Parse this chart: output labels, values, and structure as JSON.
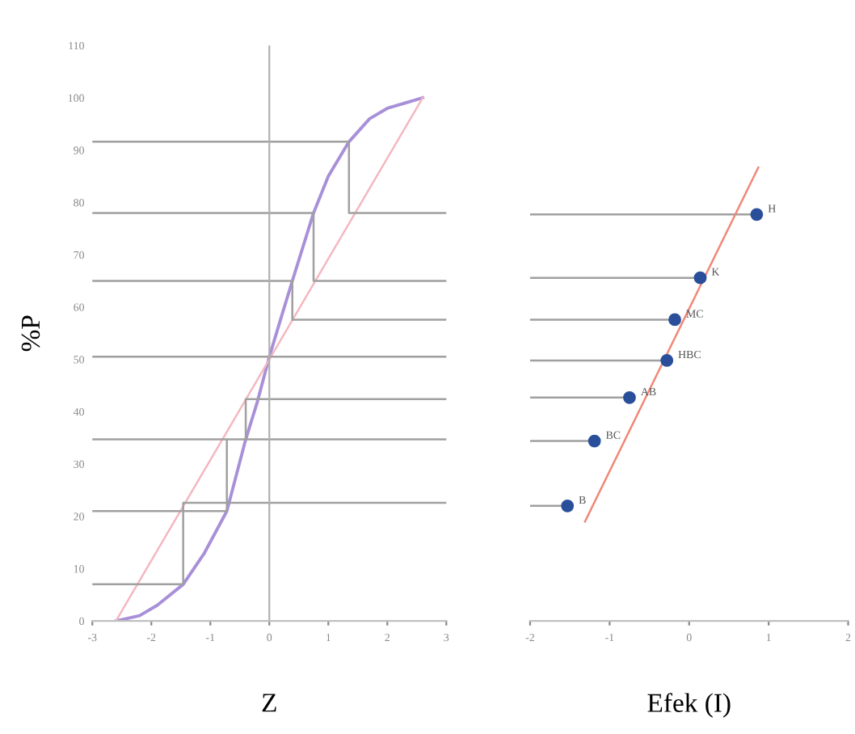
{
  "chart_data": [
    {
      "type": "line",
      "xlabel": "Z",
      "ylabel": "%P",
      "xlim": [
        -3,
        3
      ],
      "xticks": [
        -3,
        -2,
        -1,
        0,
        1,
        2,
        3
      ],
      "ylim": [
        0,
        110
      ],
      "yticks": [
        0,
        10,
        20,
        30,
        40,
        50,
        60,
        70,
        80,
        90,
        100,
        110
      ],
      "grid": false,
      "ref_lines": [
        {
          "axis": "x",
          "value": 0,
          "color": "#b0b0b0"
        }
      ],
      "series": [
        {
          "color": "#a890d8",
          "x": [
            -2.6,
            -2.2,
            -1.9,
            -1.46,
            -1.1,
            -0.72,
            -0.4,
            -0.2,
            0,
            0.2,
            0.39,
            0.75,
            1.0,
            1.35,
            1.7,
            2.0,
            2.6
          ],
          "values": [
            0,
            1,
            3,
            7,
            13,
            21,
            34.7,
            42,
            50.5,
            58,
            65,
            78,
            85,
            91.6,
            96,
            98,
            100
          ]
        },
        {
          "color": "#f4b8c0",
          "x": [
            -2.6,
            2.6
          ],
          "values": [
            0,
            100
          ]
        },
        {
          "color": "#a0a0a0",
          "x": [
            -3,
            1.35,
            1.35,
            1.35,
            3,
            null,
            -3,
            0.75,
            0.75,
            0.75,
            3,
            null,
            -3,
            0.39,
            0.39,
            0.39,
            3,
            null,
            -3,
            3,
            null,
            -3,
            -0.4,
            -0.4,
            -0.4,
            3,
            null,
            -3,
            -0.72,
            -0.72,
            -0.72,
            3,
            null,
            -3,
            -1.46,
            -1.46,
            -1.46,
            3
          ],
          "values": [
            91.6,
            91.6,
            78,
            78,
            78,
            null,
            78,
            78,
            65,
            65,
            65,
            null,
            65,
            65,
            57.6,
            57.6,
            57.6,
            null,
            50.5,
            50.5,
            null,
            34.7,
            34.7,
            42.4,
            42.4,
            42.4,
            null,
            21,
            21,
            34.7,
            34.7,
            34.7,
            null,
            7,
            7,
            22.6,
            22.6,
            22.6
          ]
        }
      ]
    },
    {
      "type": "scatter",
      "xlabel": "Efek (I)",
      "xlim": [
        -2,
        2
      ],
      "xticks": [
        -2,
        -1,
        0,
        1,
        2
      ],
      "ylim": [
        0,
        110
      ],
      "tick_labels": "x",
      "grid": false,
      "series": [
        {
          "type": "line",
          "color": "#a0a0a0",
          "x": [
            -2,
            0.85,
            null,
            -2,
            0.14,
            null,
            -2,
            -0.18,
            null,
            -2,
            -0.28,
            null,
            -2,
            -0.75,
            null,
            -2,
            -1.19,
            null,
            -2,
            -1.53
          ],
          "values": [
            77.7,
            77.7,
            null,
            65.6,
            65.6,
            null,
            57.6,
            57.6,
            null,
            49.8,
            49.8,
            null,
            42.7,
            42.7,
            null,
            34.4,
            34.4,
            null,
            22,
            22
          ]
        },
        {
          "type": "line",
          "color": "#f08878",
          "x": [
            -1.31,
            0.87
          ],
          "values": [
            19,
            86.7
          ]
        },
        {
          "color": "#2a4f9a",
          "marker": "circle",
          "x": [
            0.85,
            0.14,
            -0.18,
            -0.28,
            -0.75,
            -1.19,
            -1.53
          ],
          "values": [
            77.7,
            65.6,
            57.6,
            49.8,
            42.7,
            34.4,
            22
          ],
          "value_labels": [
            "H",
            "K",
            "MC",
            "HBC",
            "AB",
            "BC",
            "B"
          ]
        }
      ]
    }
  ]
}
